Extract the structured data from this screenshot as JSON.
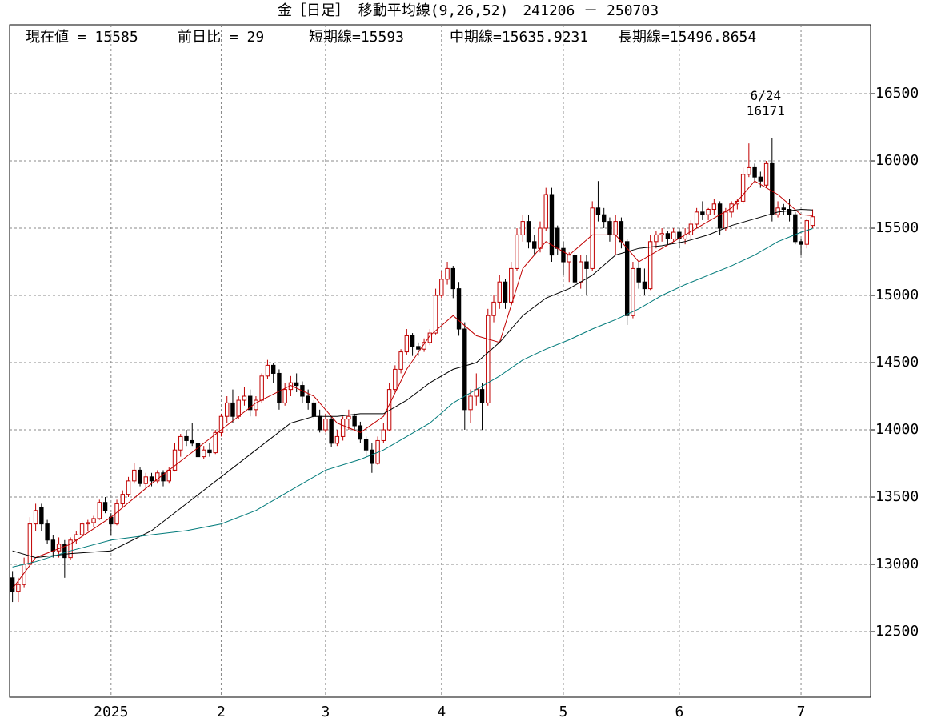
{
  "chart_data": {
    "type": "candlestick",
    "title": "金［日足］ 移動平均線(9,26,52)　241206 － 250703",
    "info": [
      "現在値 = 15585",
      "前日比 = 29",
      "短期線=15593",
      "中期線=15635.9231",
      "長期線=15496.8654"
    ],
    "up_color": "#c00000",
    "down_color": "#000000",
    "ohlc": [
      [
        12900,
        12950,
        12720,
        12800
      ],
      [
        12800,
        12900,
        12720,
        12850
      ],
      [
        12850,
        13050,
        12830,
        13000
      ],
      [
        13000,
        13350,
        12990,
        13300
      ],
      [
        13300,
        13450,
        13250,
        13400
      ],
      [
        13420,
        13450,
        13250,
        13300
      ],
      [
        13300,
        13330,
        13150,
        13180
      ],
      [
        13180,
        13220,
        13050,
        13100
      ],
      [
        13100,
        13200,
        13050,
        13150
      ],
      [
        13150,
        13180,
        12900,
        13050
      ],
      [
        13050,
        13200,
        13030,
        13180
      ],
      [
        13180,
        13250,
        13150,
        13220
      ],
      [
        13220,
        13320,
        13200,
        13300
      ],
      [
        13300,
        13330,
        13250,
        13310
      ],
      [
        13310,
        13360,
        13280,
        13340
      ],
      [
        13340,
        13480,
        13330,
        13460
      ],
      [
        13460,
        13500,
        13380,
        13400
      ],
      [
        13350,
        13380,
        13220,
        13300
      ],
      [
        13300,
        13480,
        13290,
        13450
      ],
      [
        13450,
        13550,
        13420,
        13520
      ],
      [
        13520,
        13650,
        13500,
        13620
      ],
      [
        13620,
        13750,
        13600,
        13700
      ],
      [
        13700,
        13720,
        13580,
        13600
      ],
      [
        13600,
        13680,
        13560,
        13650
      ],
      [
        13650,
        13680,
        13580,
        13620
      ],
      [
        13620,
        13700,
        13600,
        13680
      ],
      [
        13680,
        13700,
        13580,
        13620
      ],
      [
        13620,
        13720,
        13600,
        13700
      ],
      [
        13700,
        13900,
        13690,
        13850
      ],
      [
        13850,
        13970,
        13800,
        13950
      ],
      [
        13950,
        14000,
        13880,
        13920
      ],
      [
        13920,
        14050,
        13880,
        13900
      ],
      [
        13900,
        13920,
        13650,
        13800
      ],
      [
        13800,
        13880,
        13780,
        13850
      ],
      [
        13850,
        13900,
        13800,
        13830
      ],
      [
        13830,
        14000,
        13820,
        13980
      ],
      [
        13980,
        14120,
        13950,
        14100
      ],
      [
        14100,
        14250,
        14050,
        14200
      ],
      [
        14200,
        14300,
        14050,
        14100
      ],
      [
        14100,
        14250,
        14080,
        14220
      ],
      [
        14220,
        14320,
        14180,
        14250
      ],
      [
        14250,
        14300,
        14100,
        14150
      ],
      [
        14150,
        14250,
        14100,
        14220
      ],
      [
        14220,
        14420,
        14200,
        14400
      ],
      [
        14400,
        14520,
        14380,
        14480
      ],
      [
        14480,
        14500,
        14350,
        14420
      ],
      [
        14420,
        14450,
        14150,
        14200
      ],
      [
        14200,
        14350,
        14180,
        14300
      ],
      [
        14300,
        14400,
        14250,
        14350
      ],
      [
        14350,
        14420,
        14280,
        14330
      ],
      [
        14330,
        14360,
        14200,
        14250
      ],
      [
        14250,
        14300,
        14150,
        14200
      ],
      [
        14200,
        14220,
        14080,
        14100
      ],
      [
        14100,
        14150,
        13980,
        14000
      ],
      [
        14000,
        14120,
        13980,
        14080
      ],
      [
        14080,
        14100,
        13870,
        13900
      ],
      [
        13900,
        14000,
        13880,
        13950
      ],
      [
        13950,
        14100,
        13920,
        14080
      ],
      [
        14080,
        14150,
        14000,
        14100
      ],
      [
        14100,
        14120,
        14000,
        14030
      ],
      [
        14030,
        14060,
        13900,
        13930
      ],
      [
        13930,
        13950,
        13800,
        13850
      ],
      [
        13850,
        13900,
        13680,
        13750
      ],
      [
        13750,
        13950,
        13740,
        13920
      ],
      [
        13920,
        14050,
        13900,
        14000
      ],
      [
        14000,
        14350,
        13990,
        14300
      ],
      [
        14300,
        14480,
        14280,
        14450
      ],
      [
        14450,
        14600,
        14420,
        14580
      ],
      [
        14580,
        14750,
        14560,
        14700
      ],
      [
        14700,
        14720,
        14550,
        14620
      ],
      [
        14620,
        14650,
        14550,
        14600
      ],
      [
        14600,
        14680,
        14580,
        14650
      ],
      [
        14650,
        14750,
        14630,
        14720
      ],
      [
        14720,
        15050,
        14710,
        15000
      ],
      [
        15000,
        15180,
        14980,
        15120
      ],
      [
        15120,
        15250,
        15080,
        15200
      ],
      [
        15200,
        15220,
        14980,
        15050
      ],
      [
        15050,
        15100,
        14700,
        14750
      ],
      [
        14750,
        14800,
        14000,
        14150
      ],
      [
        14150,
        14300,
        14050,
        14250
      ],
      [
        14250,
        14420,
        14180,
        14300
      ],
      [
        14300,
        14350,
        14000,
        14200
      ],
      [
        14200,
        14900,
        14180,
        14850
      ],
      [
        14850,
        15000,
        14800,
        14950
      ],
      [
        14950,
        15150,
        14900,
        15100
      ],
      [
        15100,
        15120,
        14900,
        14950
      ],
      [
        14950,
        15250,
        14940,
        15200
      ],
      [
        15200,
        15500,
        15180,
        15450
      ],
      [
        15450,
        15600,
        15400,
        15550
      ],
      [
        15550,
        15600,
        15350,
        15400
      ],
      [
        15400,
        15450,
        15300,
        15350
      ],
      [
        15350,
        15550,
        15320,
        15500
      ],
      [
        15500,
        15800,
        15480,
        15750
      ],
      [
        15750,
        15800,
        15250,
        15300
      ],
      [
        15500,
        15520,
        15300,
        15350
      ],
      [
        15350,
        15400,
        15150,
        15250
      ],
      [
        15250,
        15320,
        15100,
        15300
      ],
      [
        15300,
        15350,
        15050,
        15100
      ],
      [
        15100,
        15300,
        15050,
        15250
      ],
      [
        15250,
        15300,
        15000,
        15200
      ],
      [
        15200,
        15700,
        15180,
        15650
      ],
      [
        15650,
        15850,
        15550,
        15600
      ],
      [
        15600,
        15650,
        15500,
        15550
      ],
      [
        15550,
        15580,
        15400,
        15450
      ],
      [
        15450,
        15600,
        15300,
        15550
      ],
      [
        15550,
        15580,
        15350,
        15400
      ],
      [
        15400,
        15420,
        14780,
        14850
      ],
      [
        14850,
        15250,
        14830,
        15200
      ],
      [
        15200,
        15250,
        15050,
        15100
      ],
      [
        15100,
        15200,
        15000,
        15050
      ],
      [
        15050,
        15450,
        15040,
        15400
      ],
      [
        15400,
        15480,
        15350,
        15450
      ],
      [
        15450,
        15500,
        15400,
        15460
      ],
      [
        15460,
        15480,
        15380,
        15420
      ],
      [
        15420,
        15500,
        15400,
        15470
      ],
      [
        15470,
        15500,
        15350,
        15420
      ],
      [
        15420,
        15500,
        15380,
        15450
      ],
      [
        15450,
        15560,
        15420,
        15530
      ],
      [
        15530,
        15650,
        15500,
        15620
      ],
      [
        15620,
        15700,
        15560,
        15600
      ],
      [
        15600,
        15650,
        15560,
        15640
      ],
      [
        15640,
        15720,
        15600,
        15680
      ],
      [
        15680,
        15700,
        15450,
        15500
      ],
      [
        15500,
        15650,
        15480,
        15620
      ],
      [
        15620,
        15700,
        15580,
        15680
      ],
      [
        15680,
        15720,
        15640,
        15700
      ],
      [
        15700,
        15950,
        15680,
        15900
      ],
      [
        15900,
        16130,
        15880,
        15950
      ],
      [
        15950,
        15980,
        15850,
        15880
      ],
      [
        15880,
        15920,
        15800,
        15850
      ],
      [
        15820,
        16000,
        15800,
        15980
      ],
      [
        15980,
        16171,
        15550,
        15600
      ],
      [
        15600,
        15700,
        15580,
        15650
      ],
      [
        15650,
        15680,
        15600,
        15640
      ],
      [
        15640,
        15720,
        15550,
        15600
      ],
      [
        15600,
        15620,
        15380,
        15400
      ],
      [
        15400,
        15420,
        15300,
        15380
      ],
      [
        15380,
        15570,
        15350,
        15556
      ],
      [
        15520,
        15640,
        15500,
        15585
      ]
    ],
    "lines": [
      {
        "name": "短期線",
        "color": "#c00000",
        "x": [
          0,
          4,
          10,
          17,
          24,
          30,
          36,
          42,
          48,
          52,
          56,
          60,
          64,
          68,
          72,
          76,
          80,
          84,
          88,
          92,
          96,
          100,
          104,
          108,
          112,
          116,
          120,
          124,
          128,
          132,
          136,
          138
        ],
        "values": [
          12820,
          13050,
          13150,
          13350,
          13600,
          13800,
          14000,
          14200,
          14330,
          14250,
          14050,
          13980,
          14100,
          14450,
          14700,
          14850,
          14700,
          14650,
          15200,
          15400,
          15300,
          15450,
          15450,
          15250,
          15350,
          15450,
          15550,
          15650,
          15850,
          15750,
          15600,
          15593
        ]
      },
      {
        "name": "中期線",
        "color": "#000000",
        "x": [
          0,
          4,
          10,
          17,
          24,
          30,
          36,
          42,
          48,
          52,
          56,
          60,
          64,
          68,
          72,
          76,
          80,
          84,
          88,
          92,
          96,
          100,
          104,
          108,
          112,
          116,
          120,
          124,
          128,
          132,
          136,
          138
        ],
        "values": [
          13100,
          13050,
          13080,
          13100,
          13250,
          13450,
          13650,
          13850,
          14050,
          14100,
          14100,
          14120,
          14120,
          14220,
          14350,
          14450,
          14500,
          14650,
          14850,
          14980,
          15050,
          15150,
          15300,
          15350,
          15370,
          15400,
          15450,
          15520,
          15570,
          15620,
          15640,
          15636
        ]
      },
      {
        "name": "長期線",
        "color": "#007a7a",
        "x": [
          0,
          4,
          10,
          17,
          24,
          30,
          36,
          42,
          48,
          54,
          60,
          64,
          68,
          72,
          76,
          80,
          84,
          88,
          92,
          96,
          100,
          104,
          108,
          112,
          116,
          120,
          124,
          128,
          132,
          136,
          138
        ],
        "values": [
          12980,
          13020,
          13100,
          13180,
          13220,
          13250,
          13300,
          13400,
          13550,
          13700,
          13780,
          13850,
          13950,
          14050,
          14200,
          14300,
          14400,
          14520,
          14600,
          14670,
          14750,
          14820,
          14900,
          15000,
          15080,
          15150,
          15220,
          15300,
          15400,
          15470,
          15497
        ]
      }
    ],
    "annotation": {
      "x": 131,
      "date": "6/24",
      "value": 16171
    },
    "xlim": [
      -0.5,
      148
    ],
    "xticks": [
      {
        "value": 17,
        "label": "2025"
      },
      {
        "value": 36,
        "label": "2"
      },
      {
        "value": 54,
        "label": "3"
      },
      {
        "value": 74,
        "label": "4"
      },
      {
        "value": 95,
        "label": "5"
      },
      {
        "value": 115,
        "label": "6"
      },
      {
        "value": 136,
        "label": "7"
      }
    ],
    "ylim": [
      12012,
      17012
    ],
    "yticks": [
      12500,
      13000,
      13500,
      14000,
      14500,
      15000,
      15500,
      16000,
      16500
    ],
    "grid": true
  }
}
